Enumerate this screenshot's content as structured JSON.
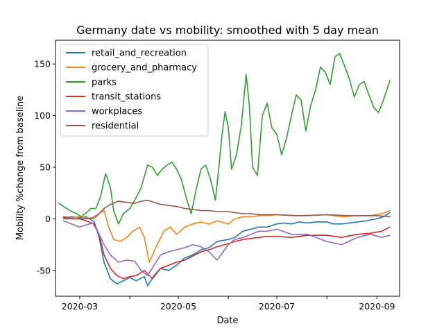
{
  "chart_data": {
    "type": "line",
    "title": "Germany date vs mobility: smoothed with 5 day mean",
    "xlabel": "Date",
    "ylabel": "Mobility %change from baseline",
    "x_range": [
      "2020-02-15",
      "2020-09-15"
    ],
    "ylim": [
      -75,
      173
    ],
    "x_ticks": [
      {
        "date": "2020-03-01",
        "label": "2020-03"
      },
      {
        "date": "2020-04-01",
        "label": ""
      },
      {
        "date": "2020-05-01",
        "label": "2020-05"
      },
      {
        "date": "2020-06-01",
        "label": ""
      },
      {
        "date": "2020-07-01",
        "label": "2020-07"
      },
      {
        "date": "2020-08-01",
        "label": ""
      },
      {
        "date": "2020-09-01",
        "label": "2020-09"
      }
    ],
    "y_ticks": [
      -50,
      0,
      50,
      100,
      150
    ],
    "grid": false,
    "legend_position": "top-left",
    "series": [
      {
        "name": "retail_and_recreation",
        "color": "#1f77b4",
        "points": [
          [
            "2020-02-20",
            1
          ],
          [
            "2020-02-25",
            2
          ],
          [
            "2020-03-01",
            1
          ],
          [
            "2020-03-05",
            2
          ],
          [
            "2020-03-10",
            -3
          ],
          [
            "2020-03-13",
            -18
          ],
          [
            "2020-03-16",
            -42
          ],
          [
            "2020-03-20",
            -58
          ],
          [
            "2020-03-24",
            -63
          ],
          [
            "2020-03-28",
            -60
          ],
          [
            "2020-04-01",
            -57
          ],
          [
            "2020-04-05",
            -60
          ],
          [
            "2020-04-10",
            -56
          ],
          [
            "2020-04-12",
            -65
          ],
          [
            "2020-04-16",
            -55
          ],
          [
            "2020-04-20",
            -48
          ],
          [
            "2020-04-25",
            -50
          ],
          [
            "2020-04-30",
            -45
          ],
          [
            "2020-05-05",
            -38
          ],
          [
            "2020-05-10",
            -35
          ],
          [
            "2020-05-15",
            -30
          ],
          [
            "2020-05-20",
            -28
          ],
          [
            "2020-05-25",
            -22
          ],
          [
            "2020-06-01",
            -20
          ],
          [
            "2020-06-05",
            -18
          ],
          [
            "2020-06-10",
            -12
          ],
          [
            "2020-06-15",
            -10
          ],
          [
            "2020-06-20",
            -8
          ],
          [
            "2020-06-25",
            -8
          ],
          [
            "2020-07-01",
            -5
          ],
          [
            "2020-07-05",
            -4
          ],
          [
            "2020-07-10",
            -5
          ],
          [
            "2020-07-15",
            -3
          ],
          [
            "2020-07-20",
            -4
          ],
          [
            "2020-07-25",
            -3
          ],
          [
            "2020-08-01",
            -3
          ],
          [
            "2020-08-05",
            -5
          ],
          [
            "2020-08-10",
            -5
          ],
          [
            "2020-08-15",
            -4
          ],
          [
            "2020-08-20",
            -3
          ],
          [
            "2020-08-25",
            -2
          ],
          [
            "2020-09-01",
            0
          ],
          [
            "2020-09-05",
            2
          ],
          [
            "2020-09-09",
            6
          ]
        ]
      },
      {
        "name": "grocery_and_pharmacy",
        "color": "#ff7f0e",
        "points": [
          [
            "2020-02-20",
            2
          ],
          [
            "2020-02-25",
            1
          ],
          [
            "2020-03-01",
            2
          ],
          [
            "2020-03-05",
            1
          ],
          [
            "2020-03-10",
            0
          ],
          [
            "2020-03-13",
            5
          ],
          [
            "2020-03-16",
            8
          ],
          [
            "2020-03-19",
            -8
          ],
          [
            "2020-03-22",
            -20
          ],
          [
            "2020-03-26",
            -22
          ],
          [
            "2020-03-30",
            -18
          ],
          [
            "2020-04-03",
            -12
          ],
          [
            "2020-04-07",
            -8
          ],
          [
            "2020-04-10",
            -18
          ],
          [
            "2020-04-13",
            -42
          ],
          [
            "2020-04-17",
            -28
          ],
          [
            "2020-04-22",
            -12
          ],
          [
            "2020-04-26",
            -8
          ],
          [
            "2020-04-30",
            -15
          ],
          [
            "2020-05-05",
            -8
          ],
          [
            "2020-05-10",
            -5
          ],
          [
            "2020-05-15",
            -3
          ],
          [
            "2020-05-20",
            -5
          ],
          [
            "2020-05-25",
            -2
          ],
          [
            "2020-06-01",
            -5
          ],
          [
            "2020-06-05",
            0
          ],
          [
            "2020-06-10",
            2
          ],
          [
            "2020-06-15",
            2
          ],
          [
            "2020-06-20",
            3
          ],
          [
            "2020-06-25",
            3
          ],
          [
            "2020-07-01",
            4
          ],
          [
            "2020-07-10",
            3
          ],
          [
            "2020-07-20",
            3
          ],
          [
            "2020-08-01",
            4
          ],
          [
            "2020-08-10",
            2
          ],
          [
            "2020-08-20",
            3
          ],
          [
            "2020-08-28",
            3
          ],
          [
            "2020-09-04",
            5
          ],
          [
            "2020-09-09",
            8
          ]
        ]
      },
      {
        "name": "parks",
        "color": "#2ca02c",
        "points": [
          [
            "2020-02-17",
            15
          ],
          [
            "2020-02-20",
            12
          ],
          [
            "2020-02-24",
            8
          ],
          [
            "2020-02-28",
            5
          ],
          [
            "2020-03-02",
            2
          ],
          [
            "2020-03-05",
            6
          ],
          [
            "2020-03-08",
            10
          ],
          [
            "2020-03-11",
            10
          ],
          [
            "2020-03-14",
            22
          ],
          [
            "2020-03-17",
            44
          ],
          [
            "2020-03-20",
            30
          ],
          [
            "2020-03-22",
            8
          ],
          [
            "2020-03-25",
            -5
          ],
          [
            "2020-03-28",
            5
          ],
          [
            "2020-04-01",
            10
          ],
          [
            "2020-04-04",
            18
          ],
          [
            "2020-04-08",
            30
          ],
          [
            "2020-04-12",
            52
          ],
          [
            "2020-04-15",
            50
          ],
          [
            "2020-04-18",
            42
          ],
          [
            "2020-04-21",
            48
          ],
          [
            "2020-04-24",
            52
          ],
          [
            "2020-04-27",
            55
          ],
          [
            "2020-04-30",
            48
          ],
          [
            "2020-05-03",
            38
          ],
          [
            "2020-05-06",
            20
          ],
          [
            "2020-05-09",
            5
          ],
          [
            "2020-05-12",
            28
          ],
          [
            "2020-05-15",
            48
          ],
          [
            "2020-05-18",
            52
          ],
          [
            "2020-05-21",
            38
          ],
          [
            "2020-05-24",
            18
          ],
          [
            "2020-05-26",
            48
          ],
          [
            "2020-05-28",
            80
          ],
          [
            "2020-05-30",
            104
          ],
          [
            "2020-06-01",
            88
          ],
          [
            "2020-06-03",
            48
          ],
          [
            "2020-06-06",
            62
          ],
          [
            "2020-06-09",
            90
          ],
          [
            "2020-06-12",
            140
          ],
          [
            "2020-06-14",
            110
          ],
          [
            "2020-06-16",
            50
          ],
          [
            "2020-06-19",
            42
          ],
          [
            "2020-06-22",
            100
          ],
          [
            "2020-06-25",
            112
          ],
          [
            "2020-06-28",
            88
          ],
          [
            "2020-07-01",
            82
          ],
          [
            "2020-07-04",
            62
          ],
          [
            "2020-07-07",
            78
          ],
          [
            "2020-07-10",
            100
          ],
          [
            "2020-07-13",
            120
          ],
          [
            "2020-07-16",
            115
          ],
          [
            "2020-07-19",
            85
          ],
          [
            "2020-07-22",
            110
          ],
          [
            "2020-07-25",
            125
          ],
          [
            "2020-07-28",
            147
          ],
          [
            "2020-07-31",
            142
          ],
          [
            "2020-08-03",
            130
          ],
          [
            "2020-08-06",
            157
          ],
          [
            "2020-08-09",
            160
          ],
          [
            "2020-08-12",
            148
          ],
          [
            "2020-08-15",
            135
          ],
          [
            "2020-08-18",
            118
          ],
          [
            "2020-08-21",
            130
          ],
          [
            "2020-08-24",
            133
          ],
          [
            "2020-08-27",
            120
          ],
          [
            "2020-08-30",
            108
          ],
          [
            "2020-09-02",
            103
          ],
          [
            "2020-09-05",
            115
          ],
          [
            "2020-09-09",
            134
          ]
        ]
      },
      {
        "name": "transit_stations",
        "color": "#d62728",
        "points": [
          [
            "2020-02-20",
            2
          ],
          [
            "2020-02-25",
            0
          ],
          [
            "2020-03-01",
            0
          ],
          [
            "2020-03-05",
            -2
          ],
          [
            "2020-03-10",
            -5
          ],
          [
            "2020-03-13",
            -15
          ],
          [
            "2020-03-16",
            -35
          ],
          [
            "2020-03-20",
            -48
          ],
          [
            "2020-03-24",
            -55
          ],
          [
            "2020-03-28",
            -58
          ],
          [
            "2020-04-01",
            -56
          ],
          [
            "2020-04-05",
            -55
          ],
          [
            "2020-04-10",
            -50
          ],
          [
            "2020-04-15",
            -58
          ],
          [
            "2020-04-20",
            -48
          ],
          [
            "2020-04-25",
            -45
          ],
          [
            "2020-04-30",
            -42
          ],
          [
            "2020-05-05",
            -40
          ],
          [
            "2020-05-10",
            -36
          ],
          [
            "2020-05-15",
            -32
          ],
          [
            "2020-05-20",
            -30
          ],
          [
            "2020-05-25",
            -27
          ],
          [
            "2020-06-01",
            -24
          ],
          [
            "2020-06-05",
            -22
          ],
          [
            "2020-06-10",
            -20
          ],
          [
            "2020-06-15",
            -19
          ],
          [
            "2020-06-20",
            -18
          ],
          [
            "2020-06-25",
            -17
          ],
          [
            "2020-07-01",
            -17
          ],
          [
            "2020-07-10",
            -18
          ],
          [
            "2020-07-20",
            -16
          ],
          [
            "2020-08-01",
            -16
          ],
          [
            "2020-08-10",
            -18
          ],
          [
            "2020-08-20",
            -15
          ],
          [
            "2020-08-28",
            -14
          ],
          [
            "2020-09-04",
            -12
          ],
          [
            "2020-09-09",
            -8
          ]
        ]
      },
      {
        "name": "workplaces",
        "color": "#9467bd",
        "points": [
          [
            "2020-02-20",
            -2
          ],
          [
            "2020-02-25",
            -5
          ],
          [
            "2020-03-01",
            -8
          ],
          [
            "2020-03-05",
            -6
          ],
          [
            "2020-03-09",
            -4
          ],
          [
            "2020-03-13",
            -15
          ],
          [
            "2020-03-16",
            -25
          ],
          [
            "2020-03-20",
            -35
          ],
          [
            "2020-03-25",
            -42
          ],
          [
            "2020-03-30",
            -40
          ],
          [
            "2020-04-04",
            -41
          ],
          [
            "2020-04-08",
            -50
          ],
          [
            "2020-04-12",
            -55
          ],
          [
            "2020-04-16",
            -45
          ],
          [
            "2020-04-20",
            -35
          ],
          [
            "2020-04-25",
            -32
          ],
          [
            "2020-04-30",
            -30
          ],
          [
            "2020-05-05",
            -28
          ],
          [
            "2020-05-10",
            -25
          ],
          [
            "2020-05-15",
            -27
          ],
          [
            "2020-05-20",
            -32
          ],
          [
            "2020-05-25",
            -40
          ],
          [
            "2020-06-01",
            -25
          ],
          [
            "2020-06-05",
            -20
          ],
          [
            "2020-06-10",
            -18
          ],
          [
            "2020-06-15",
            -15
          ],
          [
            "2020-06-20",
            -12
          ],
          [
            "2020-06-25",
            -12
          ],
          [
            "2020-07-01",
            -10
          ],
          [
            "2020-07-10",
            -15
          ],
          [
            "2020-07-20",
            -15
          ],
          [
            "2020-08-01",
            -22
          ],
          [
            "2020-08-10",
            -25
          ],
          [
            "2020-08-20",
            -18
          ],
          [
            "2020-08-28",
            -15
          ],
          [
            "2020-09-04",
            -18
          ],
          [
            "2020-09-09",
            -16
          ]
        ]
      },
      {
        "name": "residential",
        "color": "#8c564b",
        "points": [
          [
            "2020-02-20",
            0
          ],
          [
            "2020-02-25",
            0
          ],
          [
            "2020-03-01",
            0
          ],
          [
            "2020-03-05",
            0
          ],
          [
            "2020-03-09",
            1
          ],
          [
            "2020-03-13",
            5
          ],
          [
            "2020-03-16",
            10
          ],
          [
            "2020-03-20",
            14
          ],
          [
            "2020-03-25",
            17
          ],
          [
            "2020-03-30",
            16
          ],
          [
            "2020-04-04",
            15
          ],
          [
            "2020-04-08",
            17
          ],
          [
            "2020-04-12",
            18
          ],
          [
            "2020-04-16",
            16
          ],
          [
            "2020-04-20",
            14
          ],
          [
            "2020-04-25",
            13
          ],
          [
            "2020-04-30",
            12
          ],
          [
            "2020-05-05",
            10
          ],
          [
            "2020-05-10",
            9
          ],
          [
            "2020-05-15",
            8
          ],
          [
            "2020-05-20",
            8
          ],
          [
            "2020-05-25",
            7
          ],
          [
            "2020-06-01",
            7
          ],
          [
            "2020-06-05",
            6
          ],
          [
            "2020-06-10",
            5
          ],
          [
            "2020-06-15",
            5
          ],
          [
            "2020-06-20",
            4
          ],
          [
            "2020-06-25",
            4
          ],
          [
            "2020-07-01",
            4
          ],
          [
            "2020-07-15",
            3
          ],
          [
            "2020-08-01",
            4
          ],
          [
            "2020-08-15",
            3
          ],
          [
            "2020-09-01",
            3
          ],
          [
            "2020-09-09",
            2
          ]
        ]
      }
    ]
  }
}
